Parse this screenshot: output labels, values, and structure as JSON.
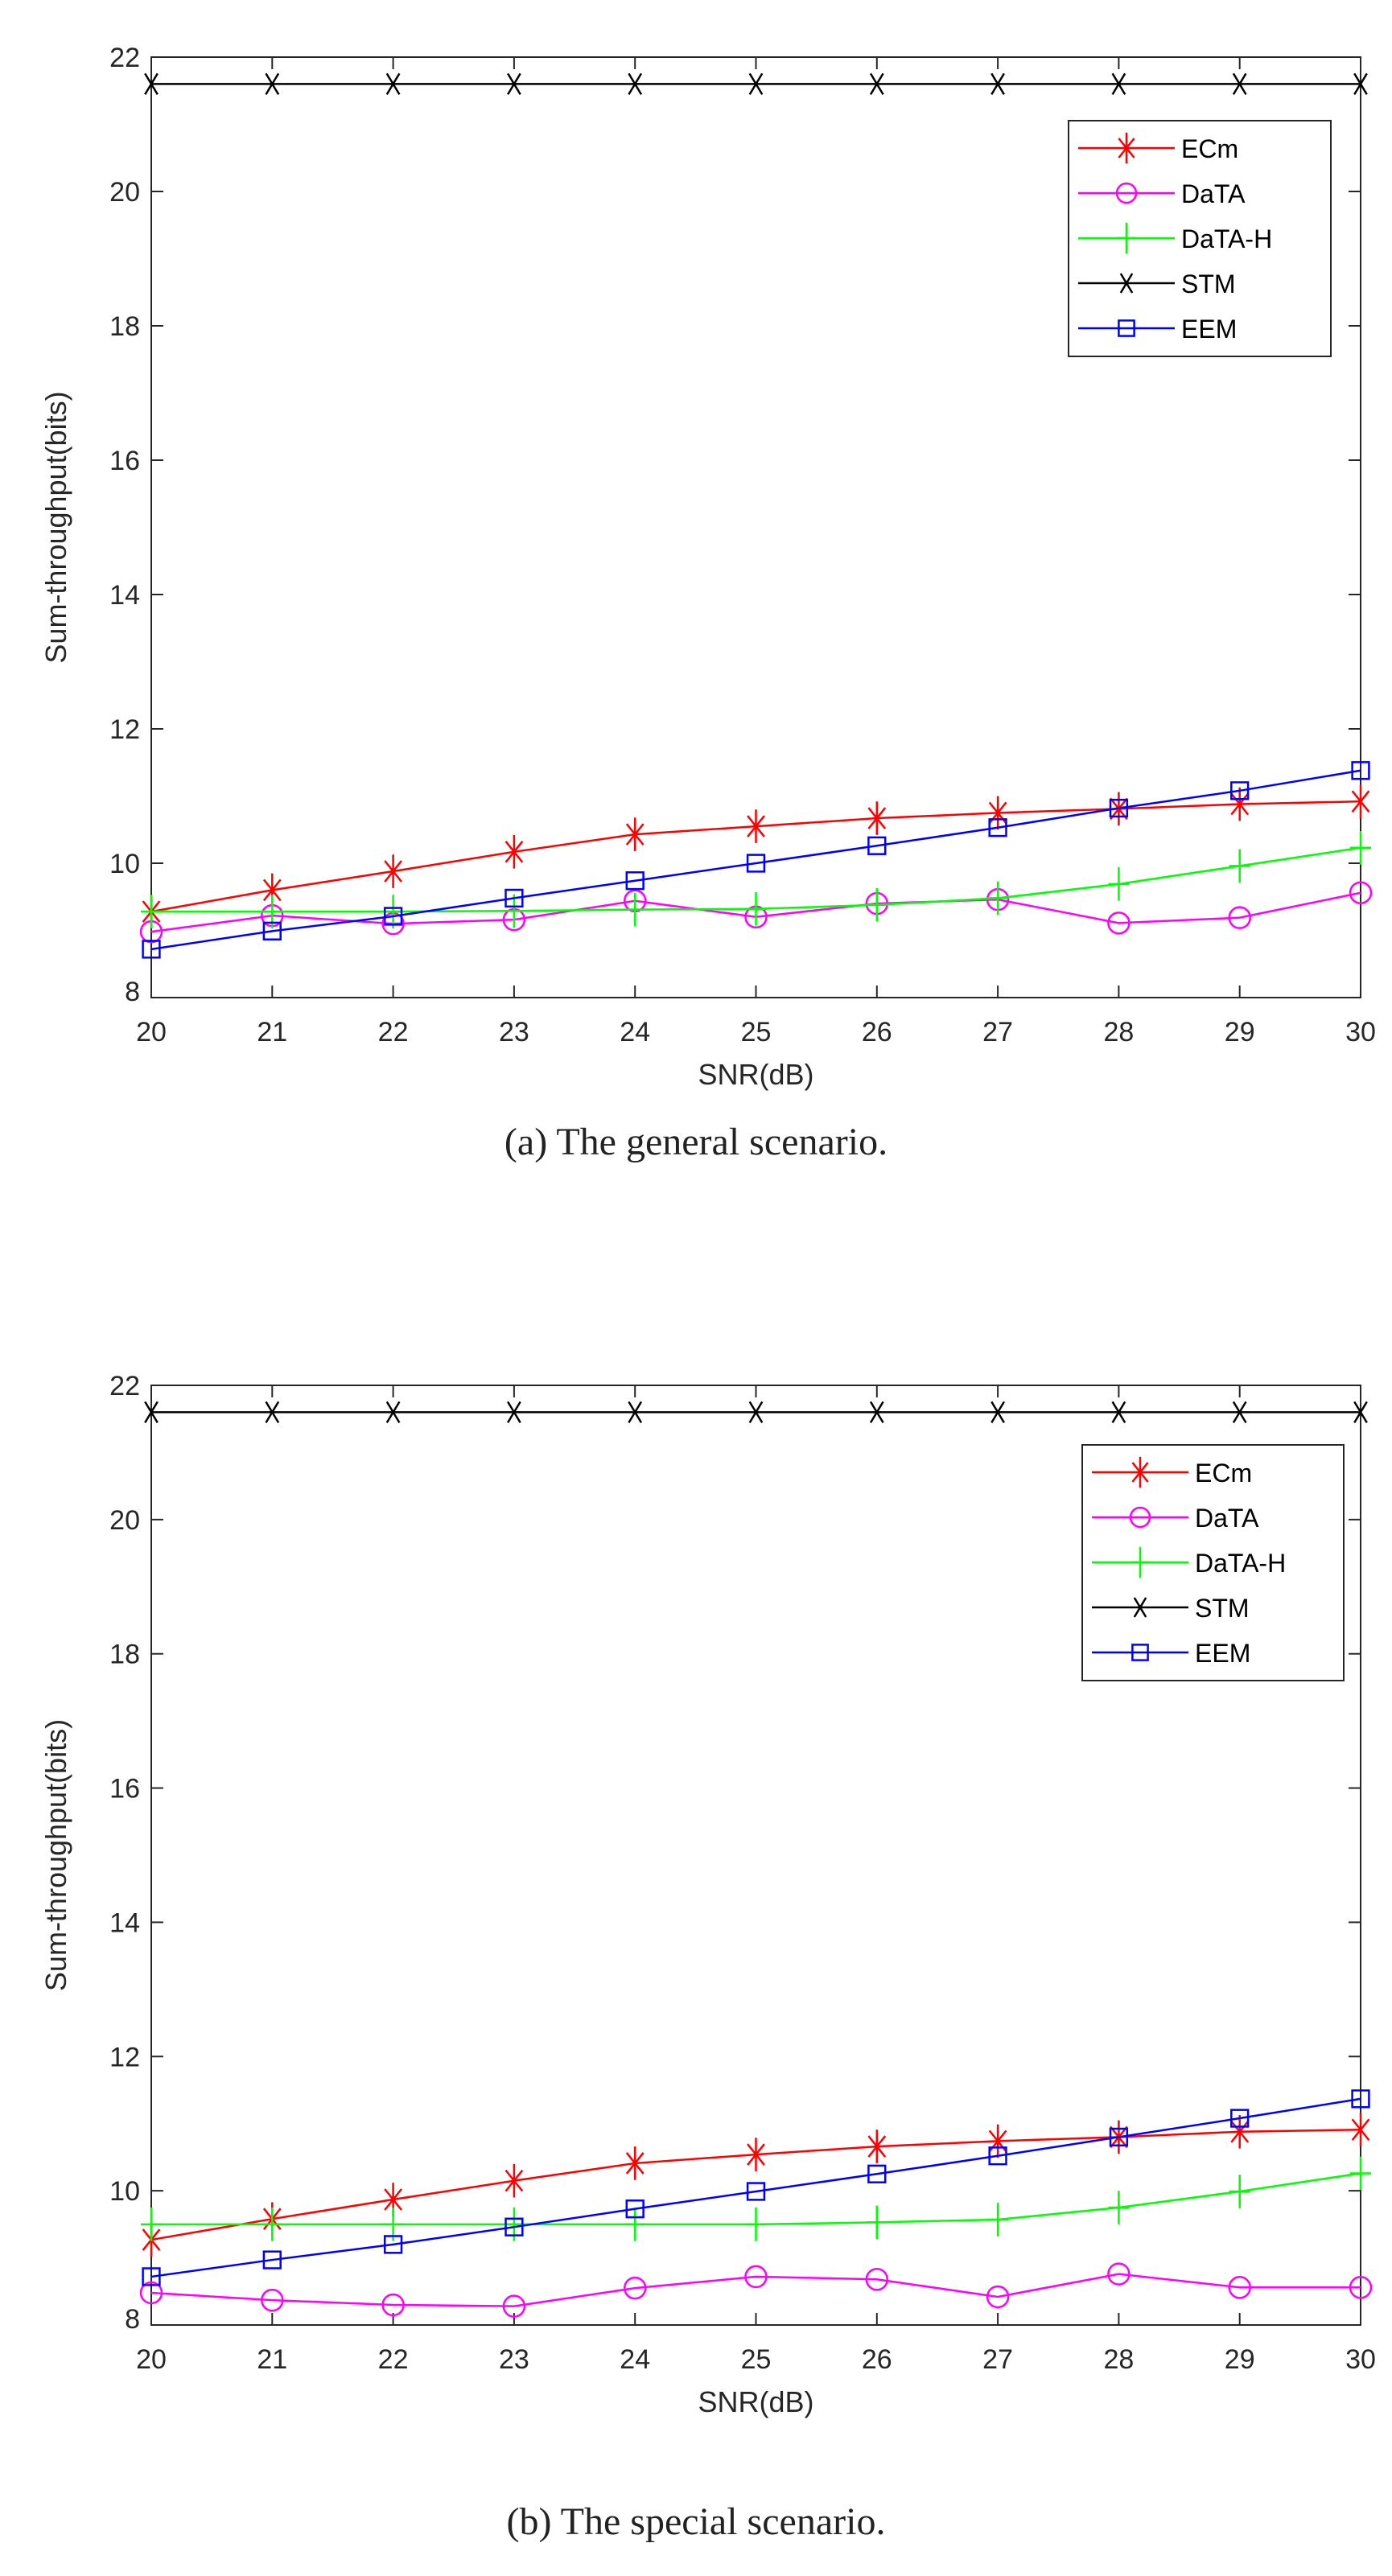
{
  "chart_data": [
    {
      "type": "line",
      "caption": "(a)  The general scenario.",
      "xlabel": "SNR(dB)",
      "ylabel": "Sum-throughput(bits)",
      "xlim": [
        20,
        30
      ],
      "ylim": [
        8,
        22
      ],
      "x_ticks": [
        20,
        21,
        22,
        23,
        24,
        25,
        26,
        27,
        28,
        29,
        30
      ],
      "y_ticks": [
        8,
        10,
        12,
        14,
        16,
        18,
        20,
        22
      ],
      "grid": false,
      "legend_position": "top-right",
      "x": [
        20,
        21,
        22,
        23,
        24,
        25,
        26,
        27,
        28,
        29,
        30
      ],
      "series": [
        {
          "name": "ECm",
          "color": "#ff0000",
          "marker": "asterisk",
          "values": [
            9.28,
            9.6,
            9.88,
            10.17,
            10.43,
            10.55,
            10.67,
            10.75,
            10.81,
            10.88,
            10.92
          ]
        },
        {
          "name": "DaTA",
          "color": "#ff00ff",
          "marker": "circle",
          "values": [
            8.98,
            9.22,
            9.1,
            9.16,
            9.44,
            9.2,
            9.4,
            9.46,
            9.11,
            9.19,
            9.56
          ]
        },
        {
          "name": "DaTA-H",
          "color": "#00ff00",
          "marker": "plus",
          "values": [
            9.28,
            9.28,
            9.28,
            9.29,
            9.31,
            9.32,
            9.38,
            9.48,
            9.69,
            9.96,
            10.23
          ]
        },
        {
          "name": "STM",
          "color": "#000000",
          "marker": "x",
          "values": [
            21.6,
            21.6,
            21.6,
            21.6,
            21.6,
            21.6,
            21.6,
            21.6,
            21.6,
            21.6,
            21.6
          ]
        },
        {
          "name": "EEM",
          "color": "#0000ff",
          "marker": "square",
          "values": [
            8.72,
            8.99,
            9.21,
            9.48,
            9.74,
            10.0,
            10.26,
            10.53,
            10.82,
            11.08,
            11.38
          ]
        }
      ]
    },
    {
      "type": "line",
      "caption": "(b)  The special scenario.",
      "xlabel": "SNR(dB)",
      "ylabel": "Sum-throughput(bits)",
      "xlim": [
        20,
        30
      ],
      "ylim": [
        8,
        22
      ],
      "x_ticks": [
        20,
        21,
        22,
        23,
        24,
        25,
        26,
        27,
        28,
        29,
        30
      ],
      "y_ticks": [
        8,
        10,
        12,
        14,
        16,
        18,
        20,
        22
      ],
      "grid": false,
      "legend_position": "top-right",
      "x": [
        20,
        21,
        22,
        23,
        24,
        25,
        26,
        27,
        28,
        29,
        30
      ],
      "series": [
        {
          "name": "ECm",
          "color": "#ff0000",
          "marker": "asterisk",
          "values": [
            9.27,
            9.58,
            9.87,
            10.15,
            10.41,
            10.54,
            10.66,
            10.74,
            10.8,
            10.88,
            10.91
          ]
        },
        {
          "name": "DaTA",
          "color": "#ff00ff",
          "marker": "circle",
          "values": [
            8.48,
            8.37,
            8.3,
            8.28,
            8.55,
            8.72,
            8.68,
            8.42,
            8.76,
            8.56,
            8.56
          ]
        },
        {
          "name": "DaTA-H",
          "color": "#00ff00",
          "marker": "plus",
          "values": [
            9.5,
            9.5,
            9.5,
            9.5,
            9.5,
            9.5,
            9.53,
            9.57,
            9.75,
            9.99,
            10.26
          ]
        },
        {
          "name": "STM",
          "color": "#000000",
          "marker": "x",
          "values": [
            21.6,
            21.6,
            21.6,
            21.6,
            21.6,
            21.6,
            21.6,
            21.6,
            21.6,
            21.6,
            21.6
          ]
        },
        {
          "name": "EEM",
          "color": "#0000ff",
          "marker": "square",
          "values": [
            8.72,
            8.97,
            9.2,
            9.46,
            9.73,
            9.99,
            10.25,
            10.52,
            10.8,
            11.08,
            11.37
          ]
        }
      ]
    }
  ]
}
